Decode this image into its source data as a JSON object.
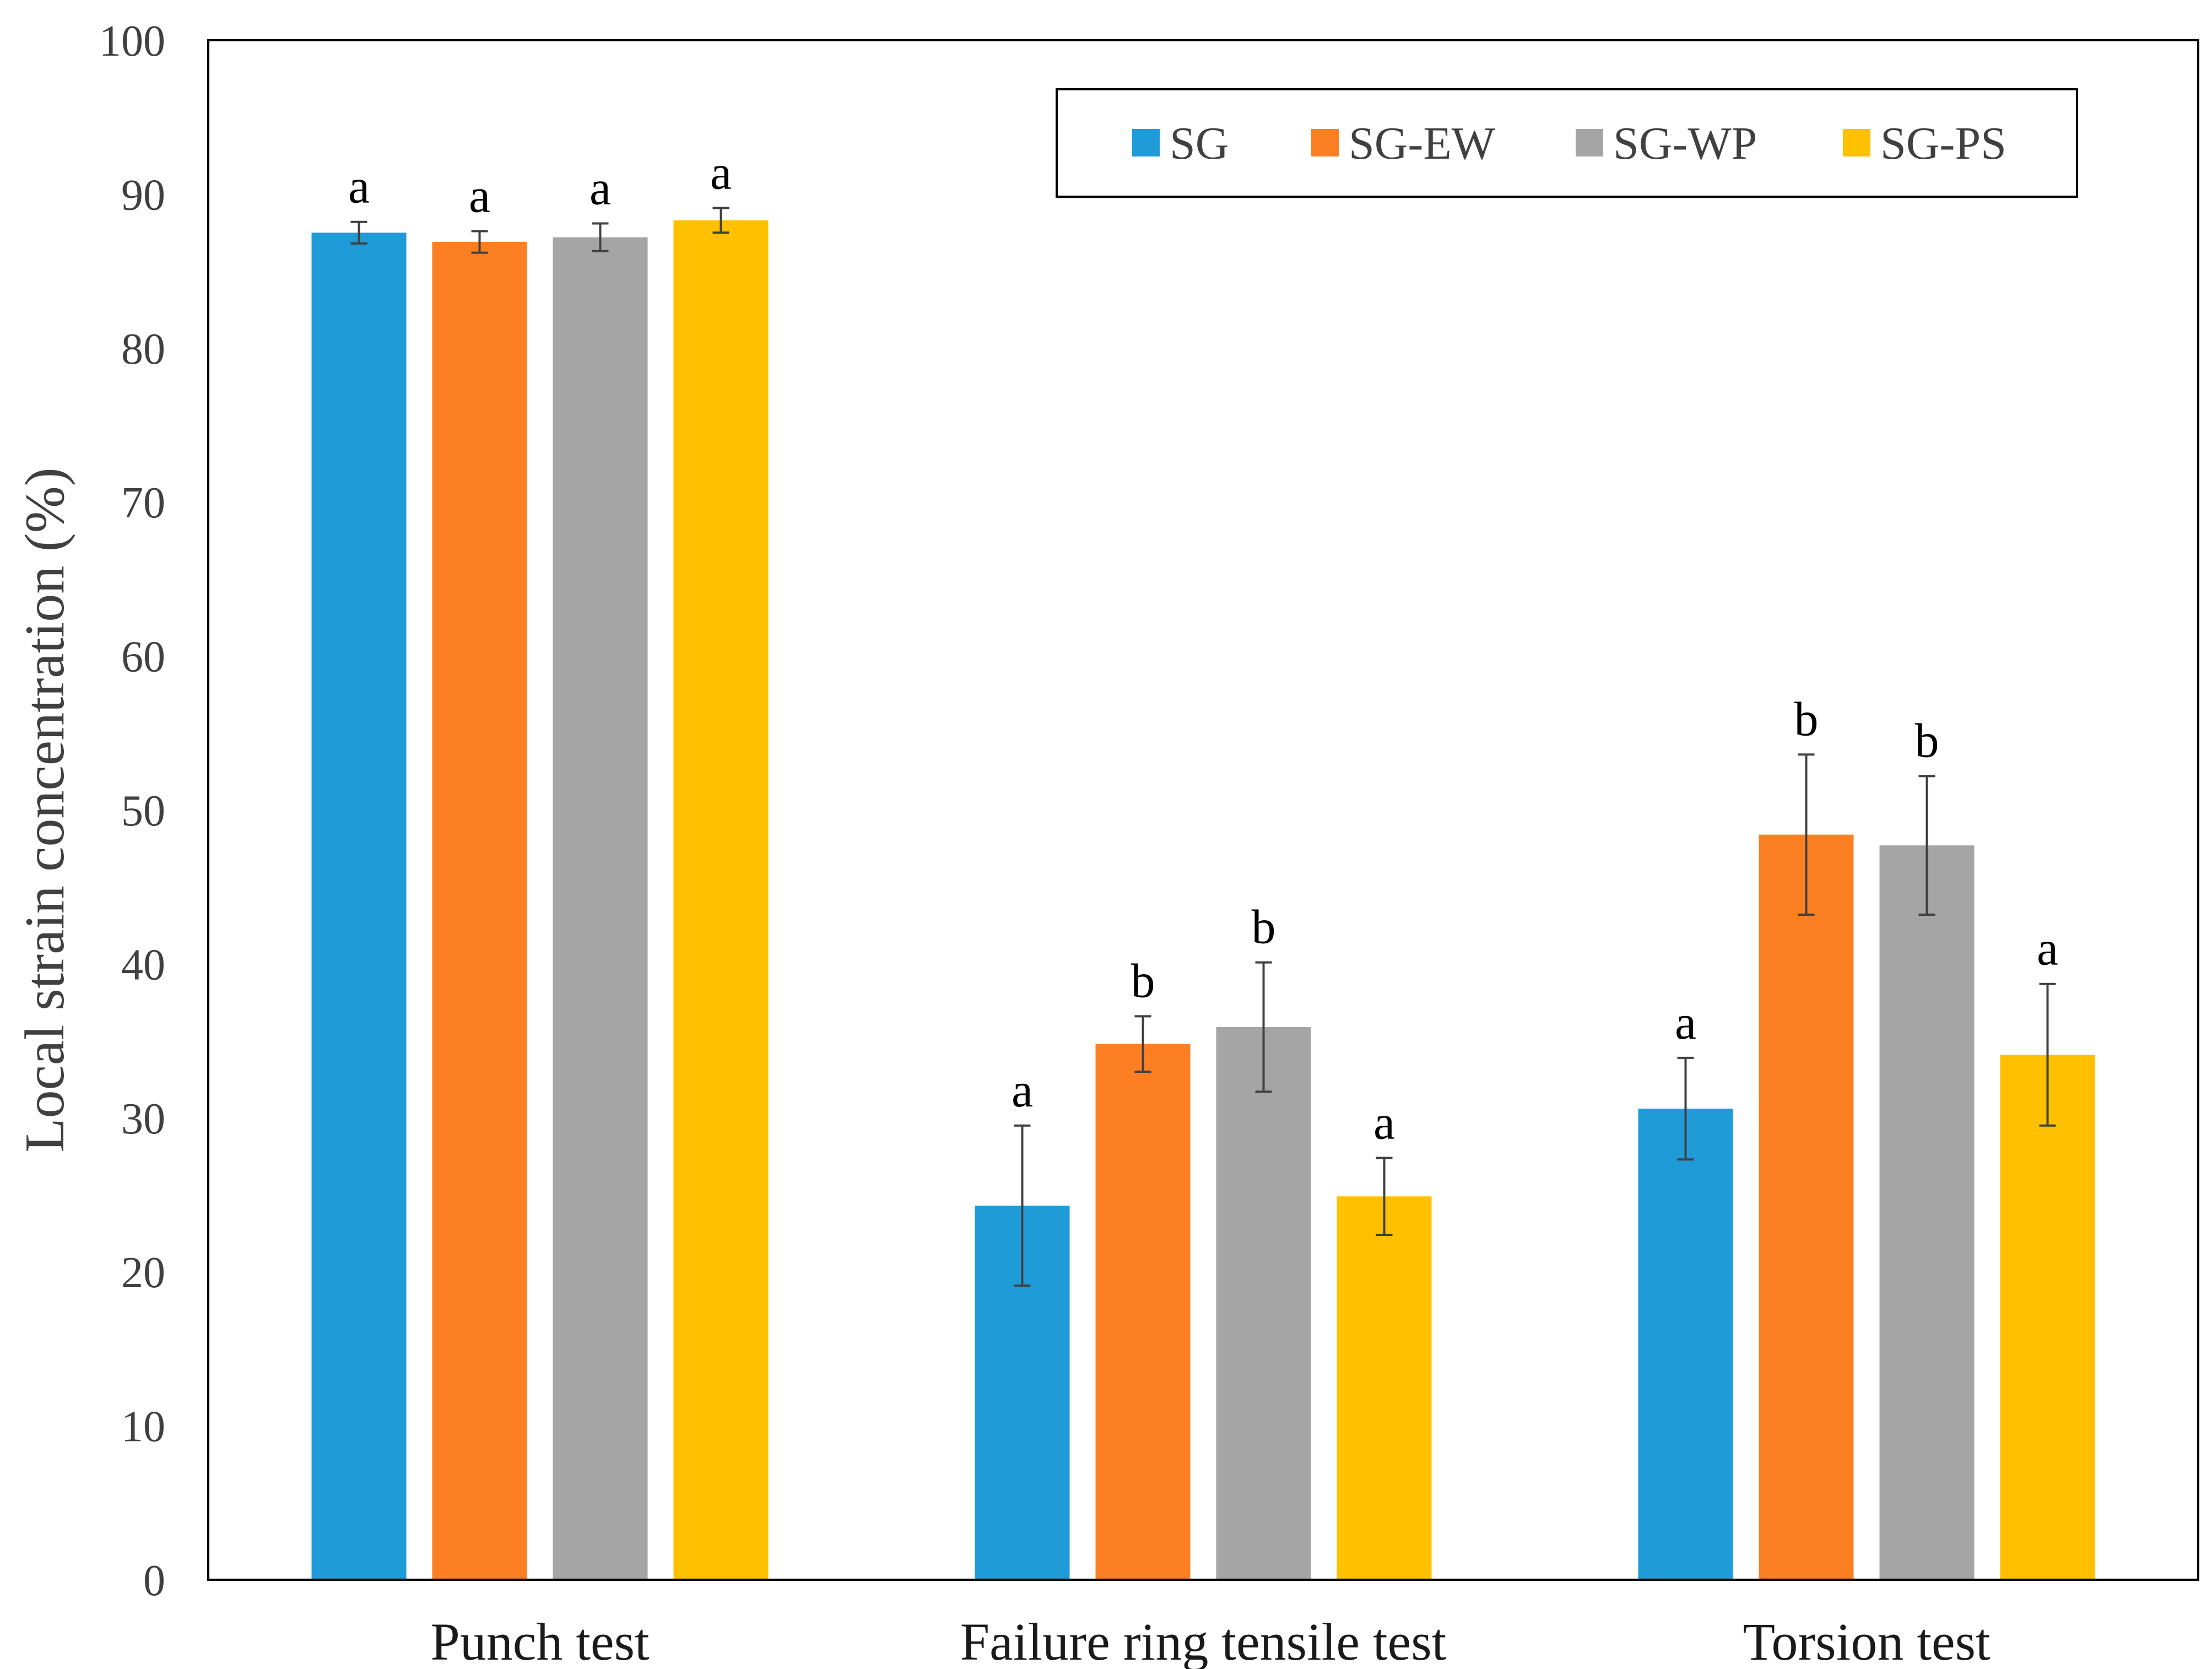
{
  "chart_data": {
    "type": "bar",
    "title": "",
    "xlabel": "",
    "ylabel": "Local strain concentration (%)",
    "ylim": [
      0,
      100
    ],
    "yticks": [
      0,
      10,
      20,
      30,
      40,
      50,
      60,
      70,
      80,
      90,
      100
    ],
    "grid": false,
    "legend_position": "top-right",
    "categories": [
      "Punch test",
      "Failure ring tensile test",
      "Torsion test"
    ],
    "series": [
      {
        "name": "SG",
        "color": "#1f9bd7",
        "values": [
          87.5,
          24.3,
          30.6
        ],
        "errors": [
          0.7,
          5.2,
          3.3
        ],
        "labels": [
          "a",
          "a",
          "a"
        ]
      },
      {
        "name": "SG-EW",
        "color": "#fd7f23",
        "values": [
          86.9,
          34.8,
          48.4
        ],
        "errors": [
          0.7,
          1.8,
          5.2
        ],
        "labels": [
          "a",
          "b",
          "b"
        ]
      },
      {
        "name": "SG-WP",
        "color": "#a5a5a5",
        "values": [
          87.2,
          35.9,
          47.7
        ],
        "errors": [
          0.9,
          4.2,
          4.5
        ],
        "labels": [
          "a",
          "b",
          "b"
        ]
      },
      {
        "name": "SG-PS",
        "color": "#ffc000",
        "values": [
          88.3,
          24.9,
          34.1
        ],
        "errors": [
          0.8,
          2.5,
          4.6
        ],
        "labels": [
          "a",
          "a",
          "a"
        ]
      }
    ]
  }
}
